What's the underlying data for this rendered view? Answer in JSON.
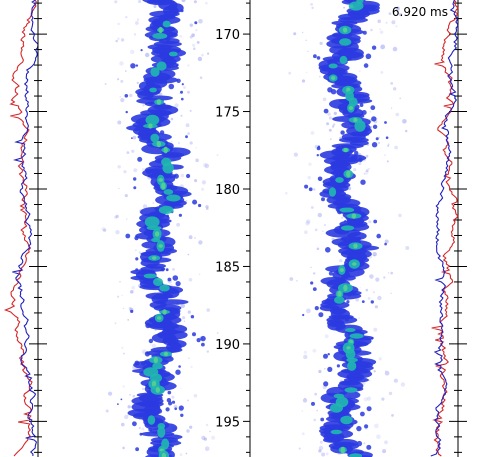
{
  "time_readout": "6.920 ms",
  "chart_data": {
    "type": "image",
    "y_axis": {
      "range": [
        167.8,
        197.3
      ],
      "major_ticks": [
        170,
        175,
        180,
        185,
        190,
        195
      ],
      "tick_labels": [
        "170",
        "175",
        "180",
        "185",
        "190",
        "195"
      ],
      "minor_tick_step": 1,
      "inverted": true
    },
    "side_profiles": {
      "series": [
        {
          "color": "#d62728"
        },
        {
          "color": "#1f1fbf"
        }
      ]
    },
    "colormap": [
      "#eef0ff",
      "#8f95ee",
      "#2a3ae0",
      "#1e6fe0",
      "#20b8b0",
      "#58d090"
    ],
    "panels": [
      {
        "side": "left"
      },
      {
        "side": "right"
      }
    ]
  }
}
